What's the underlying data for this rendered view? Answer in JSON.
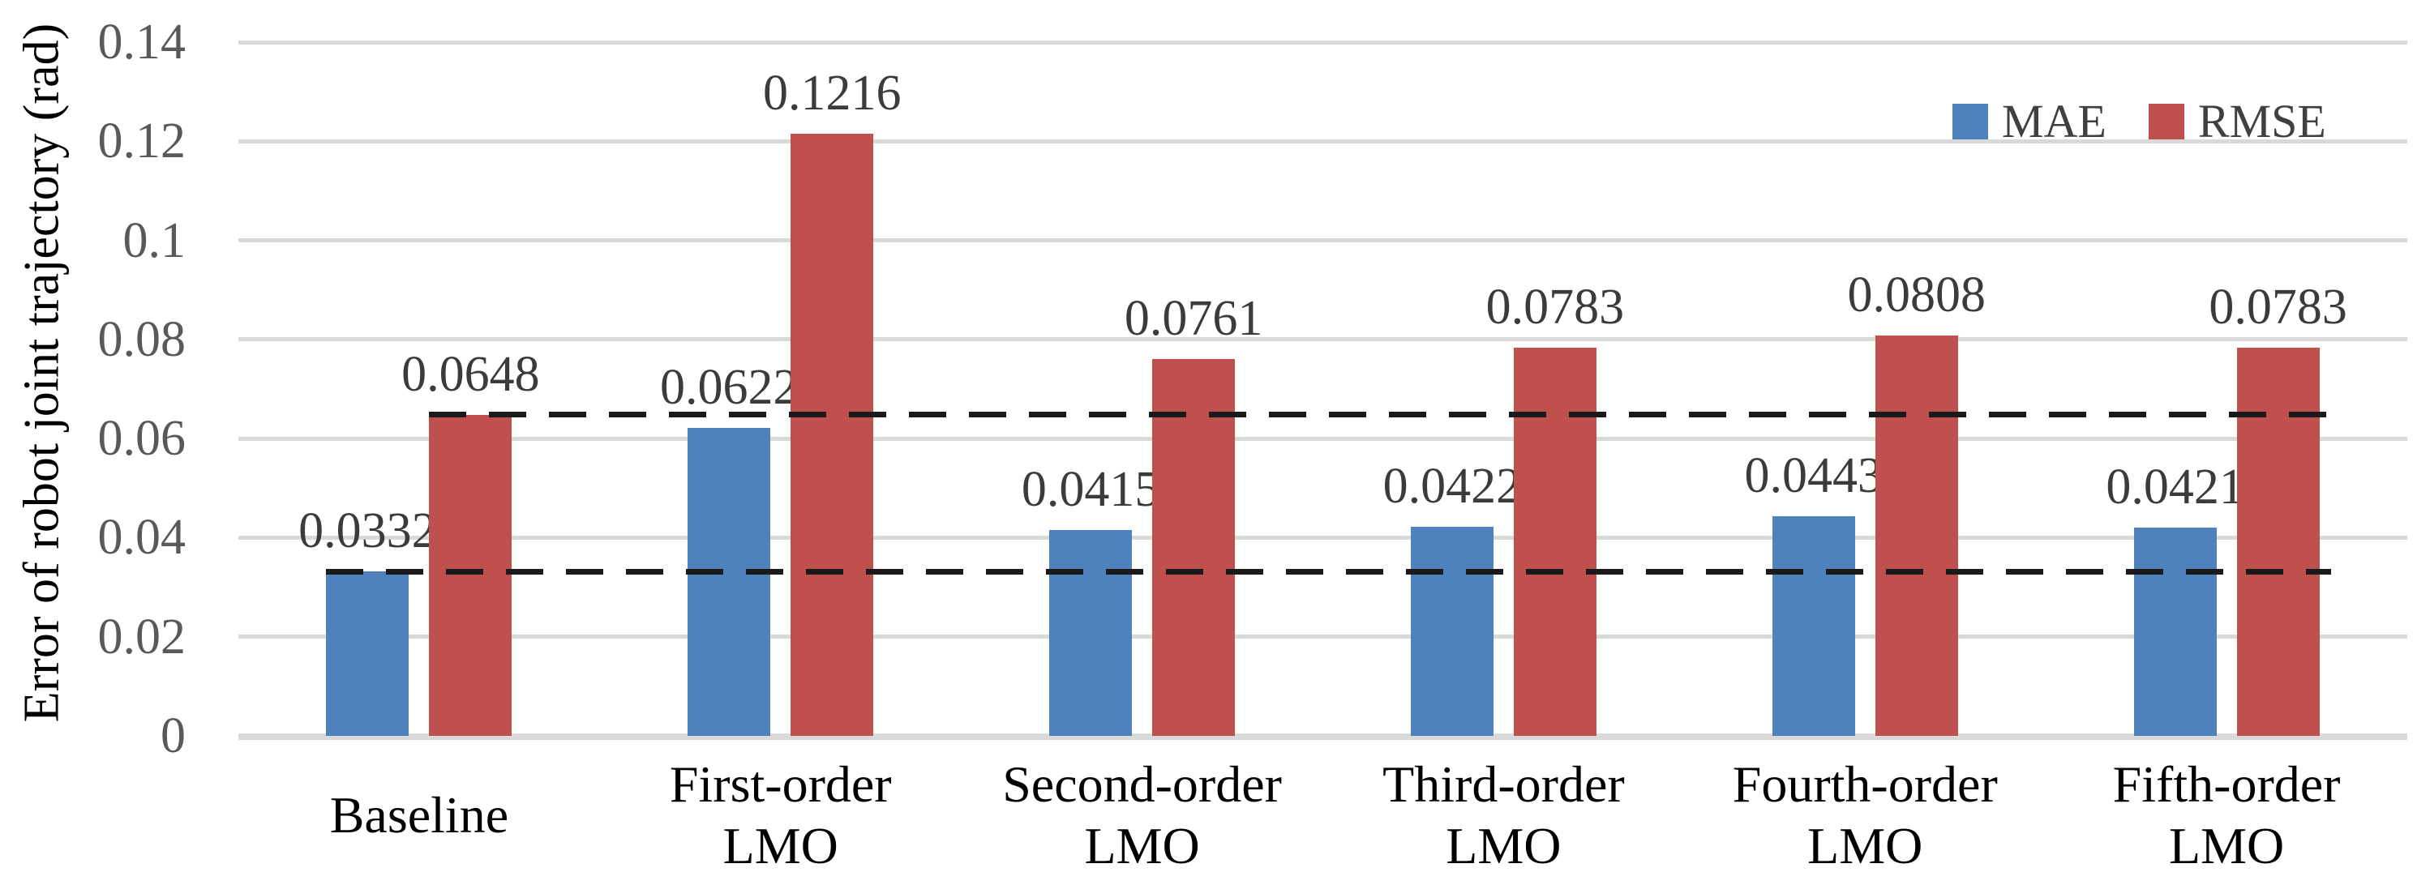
{
  "chart_data": {
    "type": "bar",
    "title": "",
    "xlabel": "",
    "ylabel": "Error of robot joint trajectory (rad)",
    "ylim": [
      0,
      0.14
    ],
    "yticks": [
      "0",
      "0.02",
      "0.04",
      "0.06",
      "0.08",
      "0.1",
      "0.12",
      "0.14"
    ],
    "grid": true,
    "gridline_color": "#D9D9D9",
    "axis_line_color": "#D9D9D9",
    "tick_label_color": "#595959",
    "data_label_color": "#3B3B3B",
    "category_label_color": "#000000",
    "categories": [
      {
        "lines": [
          "Baseline"
        ]
      },
      {
        "lines": [
          "First-order",
          "LMO"
        ]
      },
      {
        "lines": [
          "Second-order",
          "LMO"
        ]
      },
      {
        "lines": [
          "Third-order",
          "LMO"
        ]
      },
      {
        "lines": [
          "Fourth-order",
          "LMO"
        ]
      },
      {
        "lines": [
          "Fifth-order",
          "LMO"
        ]
      }
    ],
    "series": [
      {
        "name": "MAE",
        "color": "#4F81BD",
        "values": [
          0.0332,
          0.0622,
          0.0415,
          0.0422,
          0.0443,
          0.0421
        ],
        "labels": [
          "0.0332",
          "0.0622",
          "0.0415",
          "0.0422",
          "0.0443",
          "0.0421"
        ]
      },
      {
        "name": "RMSE",
        "color": "#C0504D",
        "values": [
          0.0648,
          0.1216,
          0.0761,
          0.0783,
          0.0808,
          0.0783
        ],
        "labels": [
          "0.0648",
          "0.1216",
          "0.0761",
          "0.0783",
          "0.0808",
          "0.0783"
        ]
      }
    ],
    "reference_lines": [
      {
        "value": 0.0648,
        "series": "RMSE",
        "category": "Baseline",
        "style": "dashed",
        "color": "#1A1A1A"
      },
      {
        "value": 0.0332,
        "series": "MAE",
        "category": "Baseline",
        "style": "dashed",
        "color": "#1A1A1A"
      }
    ],
    "legend": {
      "position": "top-right",
      "entries": [
        "MAE",
        "RMSE"
      ]
    }
  }
}
